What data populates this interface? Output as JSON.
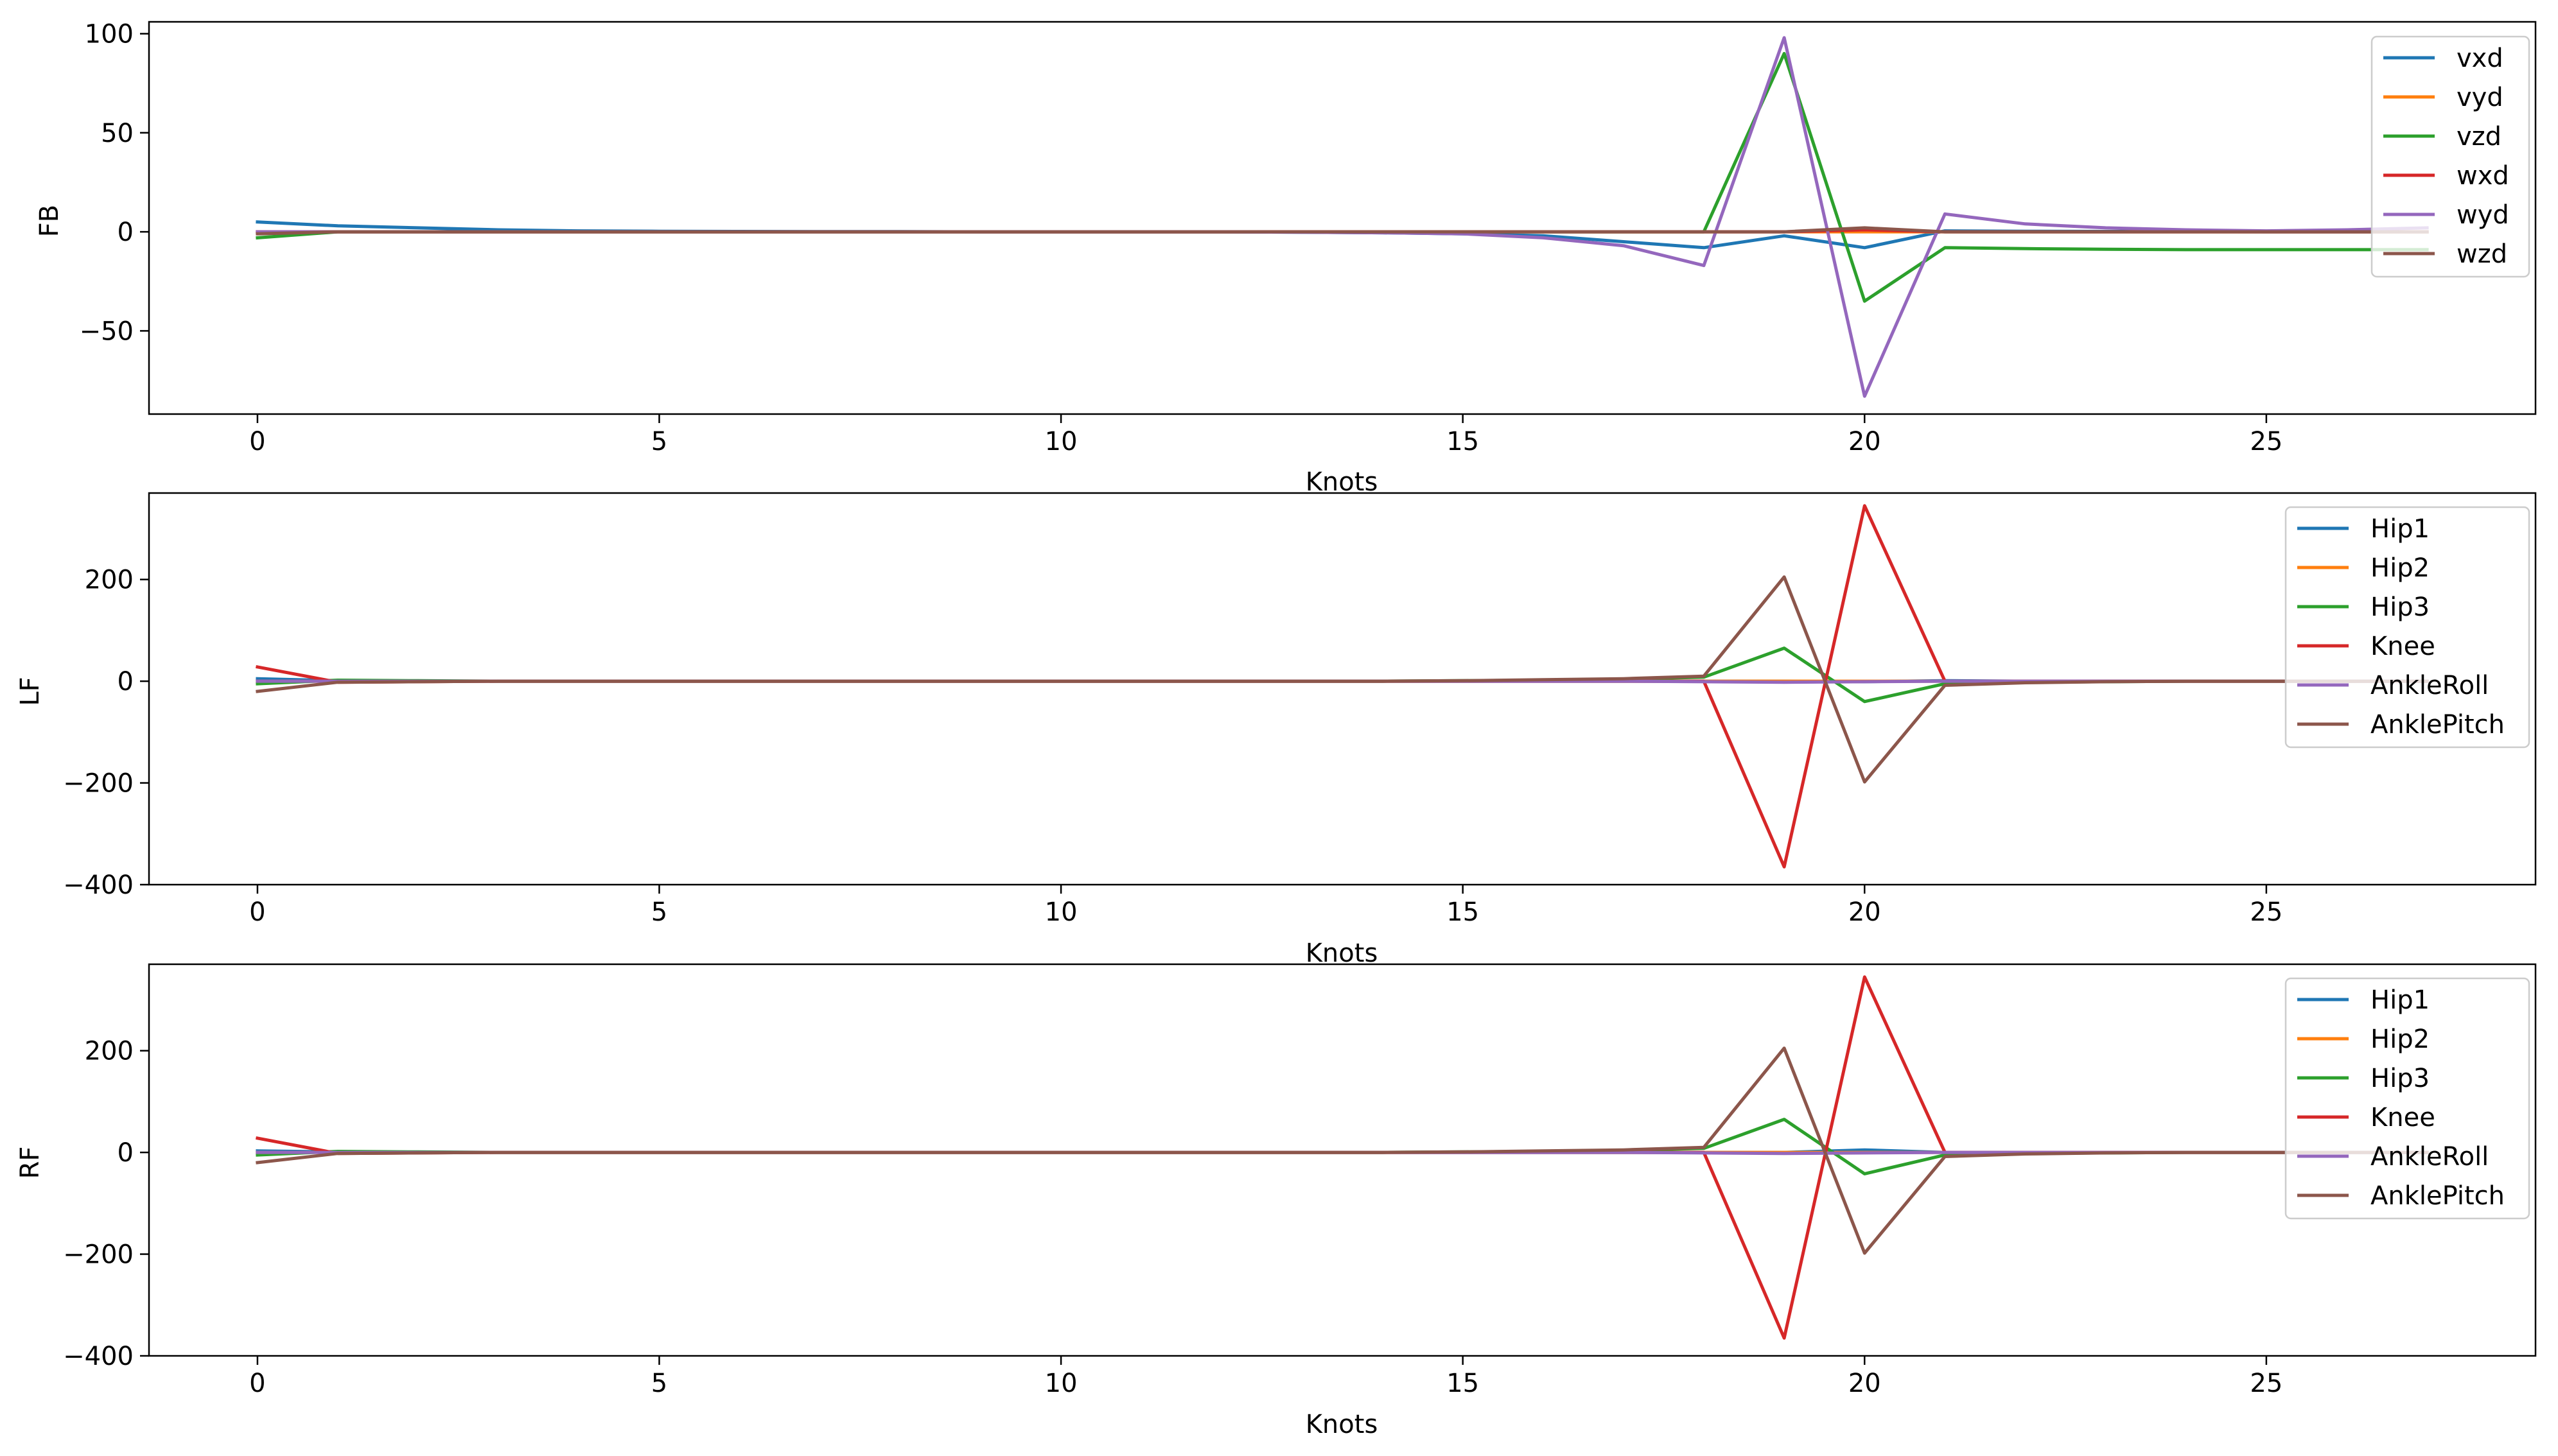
{
  "chart_data": [
    {
      "type": "line",
      "ylabel": "FB",
      "xlabel": "Knots",
      "xlim": [
        -1.35,
        28.35
      ],
      "ylim": [
        -92,
        106
      ],
      "xticks": [
        0,
        5,
        10,
        15,
        20,
        25
      ],
      "xtick_labels": [
        "0",
        "5",
        "10",
        "15",
        "20",
        "25"
      ],
      "yticks": [
        -50,
        0,
        50,
        100
      ],
      "ytick_labels": [
        "−50",
        "0",
        "50",
        "100"
      ],
      "legend_position": "top-right",
      "x": [
        0,
        1,
        2,
        3,
        4,
        5,
        6,
        7,
        8,
        9,
        10,
        11,
        12,
        13,
        14,
        15,
        16,
        17,
        18,
        19,
        20,
        21,
        22,
        23,
        24,
        25,
        26,
        27
      ],
      "series": [
        {
          "name": "vxd",
          "color": "#1f77b4",
          "values": [
            5,
            3,
            2,
            1,
            0.5,
            0.3,
            0.2,
            0.1,
            0.1,
            0,
            0,
            0,
            0,
            -0.2,
            -0.5,
            -1,
            -2,
            -5,
            -8,
            -2,
            -8,
            0.5,
            0.3,
            0.2,
            0.1,
            0,
            0,
            0
          ]
        },
        {
          "name": "vyd",
          "color": "#ff7f0e",
          "values": [
            0,
            0,
            0,
            0,
            0,
            0,
            0,
            0,
            0,
            0,
            0,
            0,
            0,
            0,
            0,
            0,
            0,
            0,
            0,
            0,
            0,
            0,
            0,
            0,
            0,
            0,
            0,
            0
          ]
        },
        {
          "name": "vzd",
          "color": "#2ca02c",
          "values": [
            -3,
            0,
            0,
            0,
            0,
            0,
            0,
            0,
            0,
            0,
            0,
            0,
            0,
            0,
            0,
            0,
            0,
            0,
            0,
            90,
            -35,
            -8,
            -8.5,
            -8.8,
            -9,
            -9,
            -9,
            -9
          ]
        },
        {
          "name": "wxd",
          "color": "#d62728",
          "values": [
            0,
            0,
            0,
            0,
            0,
            0,
            0,
            0,
            0,
            0,
            0,
            0,
            0,
            0,
            0,
            0,
            0,
            0,
            0,
            0,
            1,
            0,
            0,
            0,
            0,
            0,
            0,
            0
          ]
        },
        {
          "name": "wyd",
          "color": "#9467bd",
          "values": [
            0,
            0,
            0,
            0,
            0,
            0,
            0,
            0,
            0,
            0,
            0,
            0,
            0,
            -0.2,
            -0.5,
            -1,
            -3,
            -7,
            -17,
            98,
            -83,
            9,
            4,
            2,
            1,
            0.5,
            1,
            2
          ]
        },
        {
          "name": "wzd",
          "color": "#8c564b",
          "values": [
            -1,
            0,
            0,
            0,
            0,
            0,
            0,
            0,
            0,
            0,
            0,
            0,
            0,
            0,
            0,
            0,
            0,
            0,
            0,
            0,
            2,
            0,
            0,
            0,
            0,
            0,
            0,
            0
          ]
        }
      ]
    },
    {
      "type": "line",
      "ylabel": "LF",
      "xlabel": "Knots",
      "xlim": [
        -1.35,
        28.35
      ],
      "ylim": [
        -400,
        370
      ],
      "xticks": [
        0,
        5,
        10,
        15,
        20,
        25
      ],
      "xtick_labels": [
        "0",
        "5",
        "10",
        "15",
        "20",
        "25"
      ],
      "yticks": [
        -400,
        -200,
        0,
        200
      ],
      "ytick_labels": [
        "−400",
        "−200",
        "0",
        "200"
      ],
      "legend_position": "top-right",
      "x": [
        0,
        1,
        2,
        3,
        4,
        5,
        6,
        7,
        8,
        9,
        10,
        11,
        12,
        13,
        14,
        15,
        16,
        17,
        18,
        19,
        20,
        21,
        22,
        23,
        24,
        25,
        26,
        27
      ],
      "series": [
        {
          "name": "Hip1",
          "color": "#1f77b4",
          "values": [
            5,
            1,
            0,
            0,
            0,
            0,
            0,
            0,
            0,
            0,
            0,
            0,
            0,
            0,
            0,
            0,
            0,
            0,
            0,
            0,
            -1,
            1,
            0,
            0,
            0,
            0,
            0,
            0
          ]
        },
        {
          "name": "Hip2",
          "color": "#ff7f0e",
          "values": [
            0,
            0,
            0,
            0,
            0,
            0,
            0,
            0,
            0,
            0,
            0,
            0,
            0,
            0,
            0,
            0,
            0,
            0,
            0,
            0,
            0,
            0,
            0,
            0,
            0,
            0,
            0,
            0
          ]
        },
        {
          "name": "Hip3",
          "color": "#2ca02c",
          "values": [
            -5,
            2,
            1,
            0,
            0,
            0,
            0,
            0,
            0,
            0,
            0,
            0,
            0,
            0,
            0,
            1,
            2,
            4,
            8,
            65,
            -40,
            -5,
            -2,
            -1,
            0,
            0,
            0,
            0
          ]
        },
        {
          "name": "Knee",
          "color": "#d62728",
          "values": [
            28,
            -2,
            -1,
            0,
            0,
            0,
            0,
            0,
            0,
            0,
            0,
            0,
            0,
            0,
            0,
            0,
            0,
            0,
            0,
            -365,
            345,
            0,
            0,
            0,
            0,
            0,
            0,
            0
          ]
        },
        {
          "name": "AnkleRoll",
          "color": "#9467bd",
          "values": [
            0,
            0,
            0,
            0,
            0,
            0,
            0,
            0,
            0,
            0,
            0,
            0,
            0,
            0,
            0,
            0,
            0,
            0,
            -1,
            -2,
            -1,
            0,
            0,
            0,
            0,
            0,
            0,
            0
          ]
        },
        {
          "name": "AnklePitch",
          "color": "#8c564b",
          "values": [
            -20,
            -2,
            -1,
            0,
            0,
            0,
            0,
            0,
            0,
            0,
            0,
            0,
            0,
            0,
            0,
            1,
            3,
            5,
            10,
            205,
            -198,
            -8,
            -3,
            -1,
            0,
            0,
            0,
            0
          ]
        }
      ]
    },
    {
      "type": "line",
      "ylabel": "RF",
      "xlabel": "Knots",
      "xlim": [
        -1.35,
        28.35
      ],
      "ylim": [
        -400,
        370
      ],
      "xticks": [
        0,
        5,
        10,
        15,
        20,
        25
      ],
      "xtick_labels": [
        "0",
        "5",
        "10",
        "15",
        "20",
        "25"
      ],
      "yticks": [
        -400,
        -200,
        0,
        200
      ],
      "ytick_labels": [
        "−400",
        "−200",
        "0",
        "200"
      ],
      "legend_position": "top-right",
      "x": [
        0,
        1,
        2,
        3,
        4,
        5,
        6,
        7,
        8,
        9,
        10,
        11,
        12,
        13,
        14,
        15,
        16,
        17,
        18,
        19,
        20,
        21,
        22,
        23,
        24,
        25,
        26,
        27
      ],
      "series": [
        {
          "name": "Hip1",
          "color": "#1f77b4",
          "values": [
            3,
            1,
            0,
            0,
            0,
            0,
            0,
            0,
            0,
            0,
            0,
            0,
            0,
            0,
            0,
            0,
            0,
            0,
            0,
            0,
            5,
            0,
            0,
            0,
            0,
            0,
            0,
            0
          ]
        },
        {
          "name": "Hip2",
          "color": "#ff7f0e",
          "values": [
            0,
            0,
            0,
            0,
            0,
            0,
            0,
            0,
            0,
            0,
            0,
            0,
            0,
            0,
            0,
            0,
            0,
            0,
            0,
            0,
            0,
            0,
            0,
            0,
            0,
            0,
            0,
            0
          ]
        },
        {
          "name": "Hip3",
          "color": "#2ca02c",
          "values": [
            -5,
            2,
            1,
            0,
            0,
            0,
            0,
            0,
            0,
            0,
            0,
            0,
            0,
            0,
            0,
            1,
            2,
            4,
            8,
            65,
            -42,
            -5,
            -2,
            -1,
            0,
            0,
            0,
            0
          ]
        },
        {
          "name": "Knee",
          "color": "#d62728",
          "values": [
            28,
            -2,
            -1,
            0,
            0,
            0,
            0,
            0,
            0,
            0,
            0,
            0,
            0,
            0,
            0,
            0,
            0,
            0,
            0,
            -365,
            345,
            0,
            0,
            0,
            0,
            0,
            0,
            0
          ]
        },
        {
          "name": "AnkleRoll",
          "color": "#9467bd",
          "values": [
            0,
            0,
            0,
            0,
            0,
            0,
            0,
            0,
            0,
            0,
            0,
            0,
            0,
            0,
            0,
            0,
            0,
            0,
            -1,
            -2,
            -1,
            0,
            0,
            0,
            0,
            0,
            0,
            0
          ]
        },
        {
          "name": "AnklePitch",
          "color": "#8c564b",
          "values": [
            -20,
            -2,
            -1,
            0,
            0,
            0,
            0,
            0,
            0,
            0,
            0,
            0,
            0,
            0,
            0,
            1,
            3,
            5,
            10,
            205,
            -198,
            -8,
            -3,
            -1,
            0,
            0,
            0,
            0
          ]
        }
      ]
    }
  ]
}
